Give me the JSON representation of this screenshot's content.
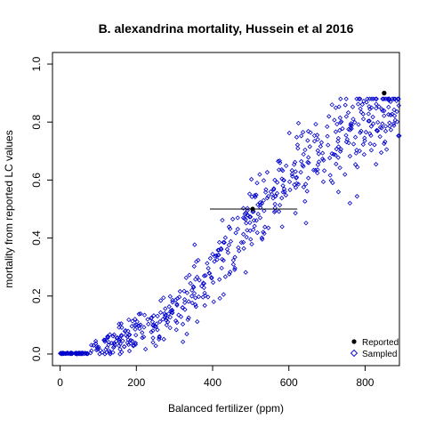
{
  "chart_data": {
    "type": "scatter",
    "title": "B. alexandrina mortality, Hussein et al 2016",
    "xlabel": "Balanced fertilizer (ppm)",
    "ylabel": "mortality from reported LC values",
    "xlim": [
      -20,
      890
    ],
    "ylim": [
      -0.04,
      1.04
    ],
    "xticks": [
      0,
      200,
      400,
      600,
      800
    ],
    "yticks": [
      0.0,
      0.2,
      0.4,
      0.6,
      0.8,
      1.0
    ],
    "xtick_labels": [
      "0",
      "200",
      "400",
      "600",
      "800"
    ],
    "ytick_labels": [
      "0.0",
      "0.2",
      "0.4",
      "0.6",
      "0.8",
      "1.0"
    ],
    "grid": false,
    "legend_position": "bottom-right",
    "series": [
      {
        "name": "Reported",
        "marker": "filled-circle",
        "color": "#000000",
        "points": [
          [
            505,
            0.5
          ],
          [
            850,
            0.9
          ]
        ]
      },
      {
        "name": "Sampled",
        "marker": "open-diamond",
        "color": "#0000cc",
        "x_range": [
          0,
          890
        ],
        "y_range": [
          0,
          0.88
        ]
      }
    ],
    "error_bars": [
      {
        "y": 0.5,
        "x_low": 393,
        "x_high": 622,
        "color": "#000000"
      }
    ]
  },
  "legend": {
    "reported_label": "Reported",
    "sampled_label": "Sampled"
  }
}
